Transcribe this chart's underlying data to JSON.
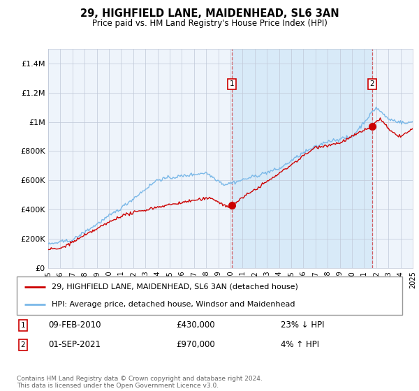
{
  "title": "29, HIGHFIELD LANE, MAIDENHEAD, SL6 3AN",
  "subtitle": "Price paid vs. HM Land Registry's House Price Index (HPI)",
  "legend_line1": "29, HIGHFIELD LANE, MAIDENHEAD, SL6 3AN (detached house)",
  "legend_line2": "HPI: Average price, detached house, Windsor and Maidenhead",
  "annotation1_label": "1",
  "annotation1_date": "09-FEB-2010",
  "annotation1_price": "£430,000",
  "annotation1_hpi": "23% ↓ HPI",
  "annotation2_label": "2",
  "annotation2_date": "01-SEP-2021",
  "annotation2_price": "£970,000",
  "annotation2_hpi": "4% ↑ HPI",
  "footer": "Contains HM Land Registry data © Crown copyright and database right 2024.\nThis data is licensed under the Open Government Licence v3.0.",
  "ylim": [
    0,
    1500000
  ],
  "yticks": [
    0,
    200000,
    400000,
    600000,
    800000,
    1000000,
    1200000,
    1400000
  ],
  "ytick_labels": [
    "£0",
    "£200K",
    "£400K",
    "£600K",
    "£800K",
    "£1M",
    "£1.2M",
    "£1.4M"
  ],
  "x_start_year": 1995,
  "x_end_year": 2025,
  "sale1_year": 2010.1,
  "sale1_price": 430000,
  "sale2_year": 2021.67,
  "sale2_price": 970000,
  "hpi_color": "#7ab8e8",
  "sale_color": "#cc0000",
  "vline_color": "#cc0000",
  "shade_color": "#d8eaf8",
  "background_color": "#eef4fb",
  "grid_color": "#c0c8d8"
}
